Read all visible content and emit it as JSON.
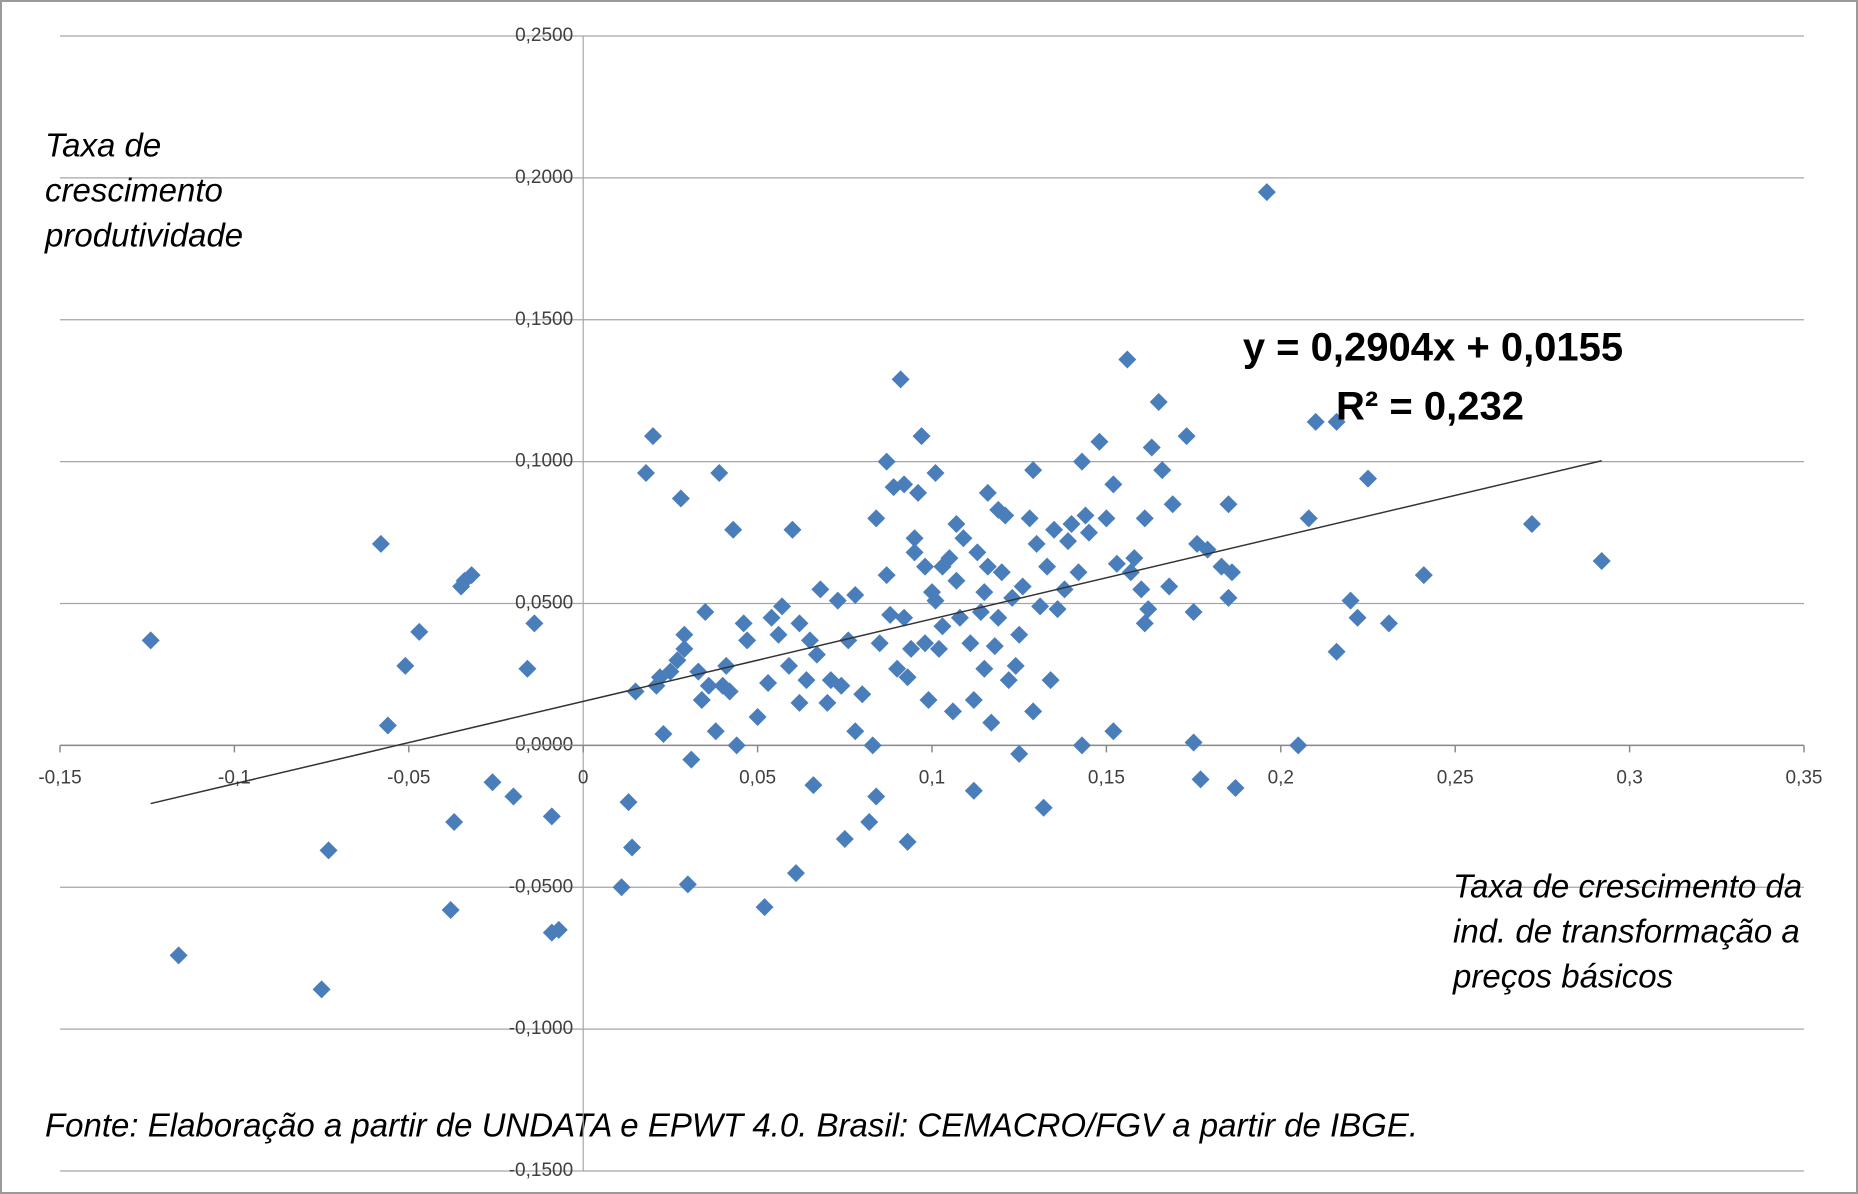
{
  "chart_data": {
    "type": "scatter",
    "x_label": [
      "Taxa de crescimento da",
      "ind. de transformação a",
      "preços básicos"
    ],
    "y_label": [
      "Taxa de",
      "crescimento",
      "produtividade"
    ],
    "source": "Fonte: Elaboração a partir de UNDATA e EPWT 4.0. Brasil: CEMACRO/FGV a partir de IBGE.",
    "color": "#4a7ebb",
    "grid": true,
    "xlim": [
      -0.15,
      0.35
    ],
    "xticks": [
      {
        "value": -0.15,
        "label": "-0,15"
      },
      {
        "value": -0.1,
        "label": "-0,1"
      },
      {
        "value": -0.05,
        "label": "-0,05"
      },
      0,
      {
        "value": 0.05,
        "label": "0,05"
      },
      {
        "value": 0.1,
        "label": "0,1"
      },
      {
        "value": 0.15,
        "label": "0,15"
      },
      {
        "value": 0.2,
        "label": "0,2"
      },
      {
        "value": 0.25,
        "label": "0,25"
      },
      {
        "value": 0.3,
        "label": "0,3"
      },
      {
        "value": 0.35,
        "label": "0,35"
      }
    ],
    "ylim": [
      -0.15,
      0.25
    ],
    "yticks": [
      {
        "value": -0.15,
        "label": "-0,1500"
      },
      {
        "value": -0.1,
        "label": "-0,1000"
      },
      {
        "value": -0.05,
        "label": "-0,0500"
      },
      {
        "value": 0,
        "label": "0,0000"
      },
      {
        "value": 0.05,
        "label": "0,0500"
      },
      {
        "value": 0.1,
        "label": "0,1000"
      },
      {
        "value": 0.15,
        "label": "0,1500"
      },
      {
        "value": 0.2,
        "label": "0,2000"
      },
      {
        "value": 0.25,
        "label": "0,2500"
      }
    ],
    "trendline": {
      "equation": "y = 0,2904x + 0,0155",
      "r2_label": "R² = 0,232",
      "slope": 0.2904,
      "intercept": 0.0155,
      "r2": 0.232
    },
    "x": [
      -0.124,
      -0.116,
      -0.075,
      -0.073,
      -0.058,
      -0.056,
      -0.051,
      -0.047,
      -0.038,
      -0.037,
      -0.035,
      -0.034,
      -0.032,
      -0.026,
      -0.02,
      -0.016,
      -0.014,
      -0.009,
      -0.009,
      -0.007,
      0.011,
      0.013,
      0.014,
      0.015,
      0.018,
      0.02,
      0.021,
      0.022,
      0.023,
      0.025,
      0.027,
      0.028,
      0.029,
      0.029,
      0.03,
      0.031,
      0.033,
      0.034,
      0.035,
      0.036,
      0.038,
      0.039,
      0.04,
      0.041,
      0.042,
      0.043,
      0.044,
      0.046,
      0.047,
      0.05,
      0.052,
      0.053,
      0.054,
      0.056,
      0.057,
      0.059,
      0.06,
      0.061,
      0.062,
      0.062,
      0.064,
      0.065,
      0.066,
      0.067,
      0.068,
      0.07,
      0.071,
      0.073,
      0.074,
      0.075,
      0.076,
      0.078,
      0.078,
      0.08,
      0.082,
      0.083,
      0.084,
      0.084,
      0.085,
      0.087,
      0.087,
      0.088,
      0.089,
      0.09,
      0.091,
      0.092,
      0.092,
      0.093,
      0.093,
      0.094,
      0.095,
      0.095,
      0.096,
      0.097,
      0.098,
      0.098,
      0.099,
      0.1,
      0.101,
      0.101,
      0.102,
      0.103,
      0.103,
      0.105,
      0.106,
      0.107,
      0.107,
      0.108,
      0.109,
      0.111,
      0.112,
      0.112,
      0.113,
      0.114,
      0.115,
      0.115,
      0.116,
      0.116,
      0.117,
      0.118,
      0.119,
      0.119,
      0.12,
      0.121,
      0.122,
      0.123,
      0.124,
      0.125,
      0.125,
      0.126,
      0.128,
      0.129,
      0.129,
      0.13,
      0.131,
      0.132,
      0.133,
      0.134,
      0.135,
      0.136,
      0.138,
      0.139,
      0.14,
      0.142,
      0.143,
      0.143,
      0.144,
      0.145,
      0.148,
      0.15,
      0.152,
      0.152,
      0.153,
      0.156,
      0.157,
      0.158,
      0.16,
      0.161,
      0.161,
      0.162,
      0.163,
      0.165,
      0.166,
      0.168,
      0.169,
      0.173,
      0.175,
      0.175,
      0.176,
      0.177,
      0.179,
      0.183,
      0.185,
      0.185,
      0.186,
      0.187,
      0.196,
      0.205,
      0.208,
      0.21,
      0.216,
      0.216,
      0.22,
      0.222,
      0.225,
      0.231,
      0.241,
      0.272,
      0.292
    ],
    "values": [
      0.037,
      -0.074,
      -0.086,
      -0.037,
      0.071,
      0.007,
      0.028,
      0.04,
      -0.058,
      -0.027,
      0.056,
      0.058,
      0.06,
      -0.013,
      -0.018,
      0.027,
      0.043,
      -0.025,
      -0.066,
      -0.065,
      -0.05,
      -0.02,
      -0.036,
      0.019,
      0.096,
      0.109,
      0.021,
      0.024,
      0.004,
      0.026,
      0.03,
      0.087,
      0.034,
      0.039,
      -0.049,
      -0.005,
      0.026,
      0.016,
      0.047,
      0.021,
      0.005,
      0.096,
      0.021,
      0.028,
      0.019,
      0.076,
      0.0,
      0.043,
      0.037,
      0.01,
      -0.057,
      0.022,
      0.045,
      0.039,
      0.049,
      0.028,
      0.076,
      -0.045,
      0.015,
      0.043,
      0.023,
      0.037,
      -0.014,
      0.032,
      0.055,
      0.015,
      0.023,
      0.051,
      0.021,
      -0.033,
      0.037,
      0.053,
      0.005,
      0.018,
      -0.027,
      0.0,
      -0.018,
      0.08,
      0.036,
      0.06,
      0.1,
      0.046,
      0.091,
      0.027,
      0.129,
      0.092,
      0.045,
      0.024,
      -0.034,
      0.034,
      0.073,
      0.068,
      0.089,
      0.109,
      0.036,
      0.063,
      0.016,
      0.054,
      0.096,
      0.051,
      0.034,
      0.063,
      0.042,
      0.066,
      0.012,
      0.078,
      0.058,
      0.045,
      0.073,
      0.036,
      0.016,
      -0.016,
      0.068,
      0.047,
      0.054,
      0.027,
      0.089,
      0.063,
      0.008,
      0.035,
      0.045,
      0.083,
      0.061,
      0.081,
      0.023,
      0.052,
      0.028,
      0.039,
      -0.003,
      0.056,
      0.08,
      0.012,
      0.097,
      0.071,
      0.049,
      -0.022,
      0.063,
      0.023,
      0.076,
      0.048,
      0.055,
      0.072,
      0.078,
      0.061,
      0.0,
      0.1,
      0.081,
      0.075,
      0.107,
      0.08,
      0.092,
      0.005,
      0.064,
      0.136,
      0.061,
      0.066,
      0.055,
      0.043,
      0.08,
      0.048,
      0.105,
      0.121,
      0.097,
      0.056,
      0.085,
      0.109,
      0.047,
      0.001,
      0.071,
      -0.012,
      0.069,
      0.063,
      0.085,
      0.052,
      0.061,
      -0.015,
      0.195,
      0.0,
      0.08,
      0.114,
      0.033,
      0.114,
      0.051,
      0.045,
      0.094,
      0.043,
      0.06,
      0.078,
      0.065
    ]
  }
}
